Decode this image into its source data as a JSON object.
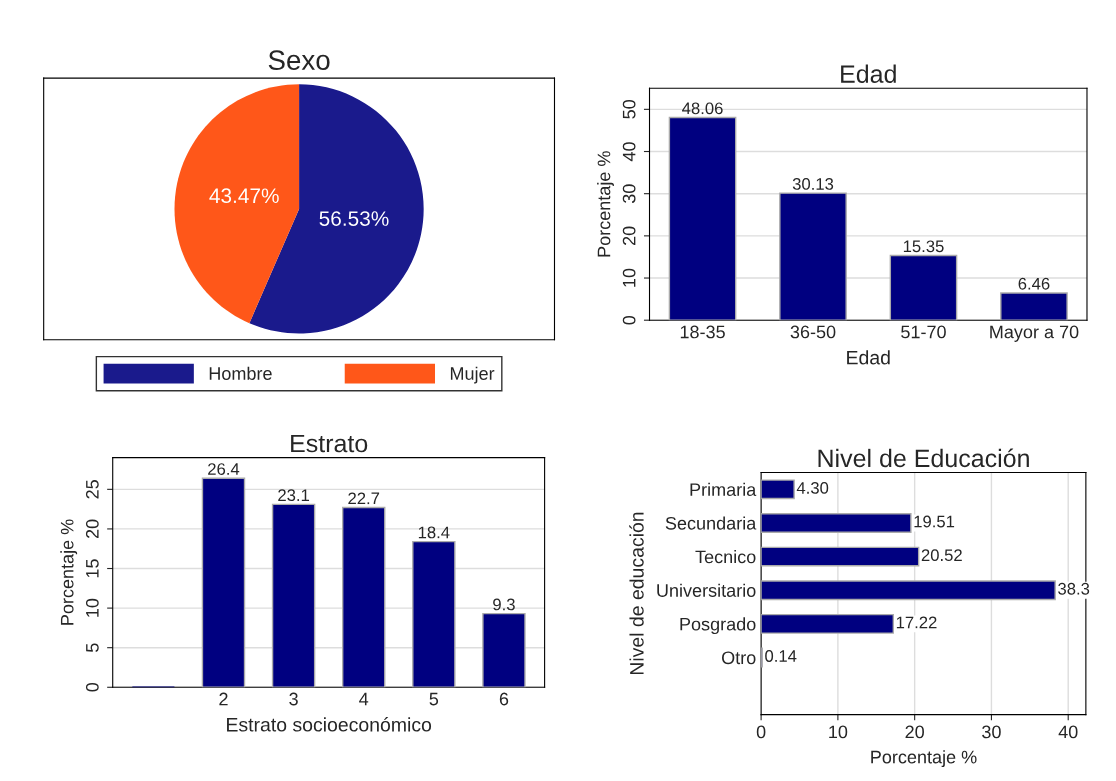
{
  "chart_data": [
    {
      "type": "pie",
      "title": "Sexo",
      "categories": [
        "Hombre",
        "Mujer"
      ],
      "values": [
        56.53,
        43.47
      ],
      "colors": [
        "#1a1a8c",
        "#ff5719"
      ],
      "value_labels": [
        "56.53%",
        "43.47%"
      ],
      "legend": "bottom"
    },
    {
      "type": "bar",
      "title": "Edad",
      "categories": [
        "18-35",
        "36-50",
        "51-70",
        "Mayor a 70"
      ],
      "values": [
        48.06,
        30.13,
        15.35,
        6.46
      ],
      "color": "#000080",
      "xlabel": "Edad",
      "ylabel": "Porcentaje %",
      "ylim": [
        0,
        55
      ],
      "yticks": [
        0,
        10,
        20,
        30,
        40,
        50
      ],
      "grid": "y",
      "data_labels": true
    },
    {
      "type": "bar",
      "title": "Estrato",
      "categories": [
        null,
        "2",
        "3",
        "4",
        "5",
        "6"
      ],
      "values": [
        0,
        26.4,
        23.1,
        22.7,
        18.4,
        9.3
      ],
      "color": "#000080",
      "xlabel": "Estrato socioeconómico",
      "ylabel": "Porcentaje %",
      "ylim": [
        0,
        29
      ],
      "yticks": [
        0,
        5,
        10,
        15,
        20,
        25
      ],
      "grid": "y",
      "value_labels": [
        null,
        "26.4",
        "23.1",
        "22.7",
        "18.4",
        "9.3"
      ]
    },
    {
      "type": "bar",
      "orientation": "horizontal",
      "title": "Nivel de Educación",
      "categories": [
        "Primaria",
        "Secundaria",
        "Tecnico",
        "Universitario",
        "Posgrado",
        "Otro"
      ],
      "values": [
        4.3,
        19.51,
        20.52,
        38.3,
        17.22,
        0.14
      ],
      "color": "#000080",
      "xlabel": "Porcentaje %",
      "ylabel": "Nivel de educación",
      "xlim": [
        0,
        42.3
      ],
      "xticks": [
        0,
        10,
        20,
        30,
        40
      ],
      "grid": "x",
      "value_labels": [
        "4.30",
        "19.51",
        "20.52",
        "38.3",
        "17.22",
        "0.14"
      ]
    }
  ]
}
